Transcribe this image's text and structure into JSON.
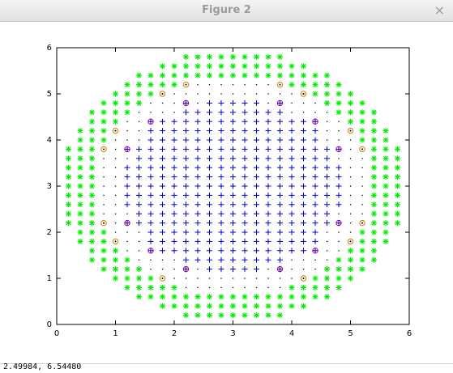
{
  "window": {
    "title": "Figure 2",
    "close_glyph": "×"
  },
  "status": {
    "coords": "2.49984,  6.54480"
  },
  "chart_data": {
    "type": "scatter",
    "xlim": [
      0,
      6
    ],
    "ylim": [
      0,
      6
    ],
    "xticks": [
      "0",
      "1",
      "2",
      "3",
      "4",
      "5",
      "6"
    ],
    "yticks": [
      "0",
      "1",
      "2",
      "3",
      "4",
      "5",
      "6"
    ],
    "grid": false,
    "grid_step": 0.2,
    "center": [
      3,
      3
    ],
    "description_of_series": [
      {
        "marker": "*",
        "color": "#00ee00",
        "region": "outer ring, radius > 2.35"
      },
      {
        "marker": ".",
        "color": "#000000",
        "region": "thin ring between outer and inner regions"
      },
      {
        "marker": "+",
        "color": "#0000cc",
        "region": "inner disk, radius < 1.85"
      },
      {
        "marker": "circled-plus",
        "color": "#cc0088",
        "region": "selected inner boundary points"
      },
      {
        "marker": "circled-dot",
        "color": "#d08000",
        "region": "selected outer boundary points"
      }
    ],
    "inner_boundary_points": [
      [
        2.2,
        4.8
      ],
      [
        3.8,
        4.8
      ],
      [
        1.6,
        4.4
      ],
      [
        4.4,
        4.4
      ],
      [
        1.2,
        3.8
      ],
      [
        4.8,
        3.8
      ],
      [
        1.2,
        2.2
      ],
      [
        4.8,
        2.2
      ],
      [
        1.6,
        1.6
      ],
      [
        4.4,
        1.6
      ],
      [
        2.2,
        1.2
      ],
      [
        3.8,
        1.2
      ]
    ],
    "outer_boundary_points": [
      [
        2.2,
        5.2
      ],
      [
        3.8,
        5.2
      ],
      [
        1.8,
        5.0
      ],
      [
        4.2,
        5.0
      ],
      [
        1.0,
        4.2
      ],
      [
        5.0,
        4.2
      ],
      [
        0.8,
        3.8
      ],
      [
        5.2,
        3.8
      ],
      [
        0.8,
        2.2
      ],
      [
        5.2,
        2.2
      ],
      [
        1.0,
        1.8
      ],
      [
        5.0,
        1.8
      ],
      [
        1.8,
        1.0
      ],
      [
        4.2,
        1.0
      ]
    ]
  }
}
